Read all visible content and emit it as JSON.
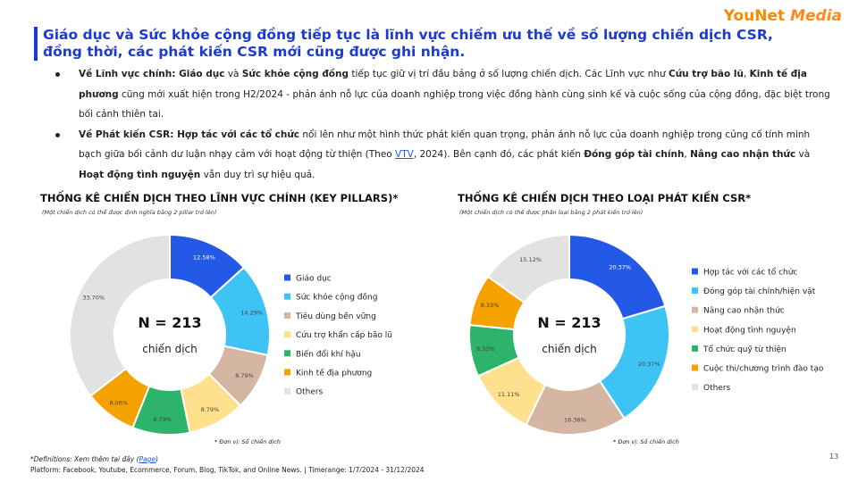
{
  "logo": [
    "YouNet",
    "Media"
  ],
  "header": {
    "title": "Giáo dục và Sức khỏe cộng đồng tiếp tục là lĩnh vực chiếm ưu thế về số lượng chiến dịch CSR, đồng thời, các phát kiến CSR mới cũng được ghi nhận."
  },
  "bullets": [
    [
      "Về Lĩnh vực chính: Giáo dục",
      " và ",
      "Sức khỏe cộng đồng",
      " tiếp tục giữ vị trí đầu bảng ở số lượng chiến dịch. Các Lĩnh vực như ",
      "Cứu trợ bão lũ",
      ", ",
      "Kinh tế địa phương",
      " cũng mới xuất hiện trong H2/2024 - phản ánh nỗ lực của doanh nghiệp trong việc đồng hành cùng sinh kế và cuộc sống của cộng đồng, đặc biệt trong bối cảnh thiên tai."
    ],
    [
      "Về Phát kiến CSR: Hợp tác với các tổ chức",
      " nổi lên như một hình thức phát kiến quan trọng, phản ánh nỗ lực của doanh nghiệp trong củng cố tính minh bạch giữa bối cảnh dư luận nhạy cảm với hoạt động từ thiện (Theo ",
      "VTV",
      ", 2024). Bên cạnh đó, các phát kiến ",
      "Đóng góp tài chính",
      ", ",
      "Nâng cao nhận thức",
      " và ",
      "Hoạt động tình nguyện",
      " vẫn duy trì sự hiệu quả."
    ]
  ],
  "chart_data": [
    {
      "type": "donut",
      "title": "THỐNG KÊ CHIẾN DỊCH THEO LĨNH VỰC CHÍNH (KEY PILLARS)*",
      "subtitle": "(Một chiến dịch có thể được định nghĩa bằng 2 pillar trở lên)",
      "center_title": "N = 213",
      "center_subtitle": "chiến dịch",
      "note": "* Đơn vị: Số chiến dịch",
      "categories": [
        "Giáo dục",
        "Sức khỏe cộng đồng",
        "Tiêu dùng bền vững",
        "Cứu trợ khẩn cấp bão lũ",
        "Biến đổi khí hậu",
        "Kinh tế địa phương",
        "Others"
      ],
      "values": [
        12.58,
        14.29,
        8.79,
        8.79,
        8.79,
        8.06,
        33.7
      ],
      "value_labels": [
        "12.58%",
        "14.29%",
        "8.79%",
        "8.79%",
        "8.79%",
        "8.06%",
        "33.70%"
      ],
      "colors": [
        "#2459e8",
        "#3ec4f4",
        "#d4b6a3",
        "#ffe08c",
        "#2db36a",
        "#f5a100",
        "#e2e2e2"
      ]
    },
    {
      "type": "donut",
      "title": "THỐNG KÊ CHIẾN DỊCH THEO LOẠI PHÁT KIẾN CSR*",
      "subtitle": "(Một chiến dịch có thể được phân loại bằng 2 phát kiến trở lên)",
      "center_title": "N = 213",
      "center_subtitle": "chiến dịch",
      "note": "* Đơn vị: Số chiến dịch",
      "categories": [
        "Hợp tác với các tổ chức",
        "Đóng góp tài chính/hiện vật",
        "Nâng cao nhận thức",
        "Hoạt động tình nguyện",
        "Tổ chức quỹ từ thiện",
        "Cuộc thi/chương trình đào tạo",
        "Others"
      ],
      "values": [
        20.37,
        20.37,
        16.36,
        11.11,
        8.33,
        8.33,
        15.12
      ],
      "value_labels": [
        "20.37%",
        "20.37%",
        "16.36%",
        "11.11%",
        "8.33%",
        "8.33%",
        "15.12%"
      ],
      "colors": [
        "#2459e8",
        "#3ec4f4",
        "#d4b6a3",
        "#ffe08c",
        "#2db36a",
        "#f5a100",
        "#e2e2e2"
      ]
    }
  ],
  "footer": {
    "definition": [
      "*Definitions: Xem thêm tại đây (",
      "Page",
      ")"
    ],
    "platform": "Platform: Facebook, Youtube, Ecommerce, Forum, Blog, TikTok, and Online News. | Timerange: 1/7/2024 - 31/12/2024",
    "page_number": 13
  }
}
